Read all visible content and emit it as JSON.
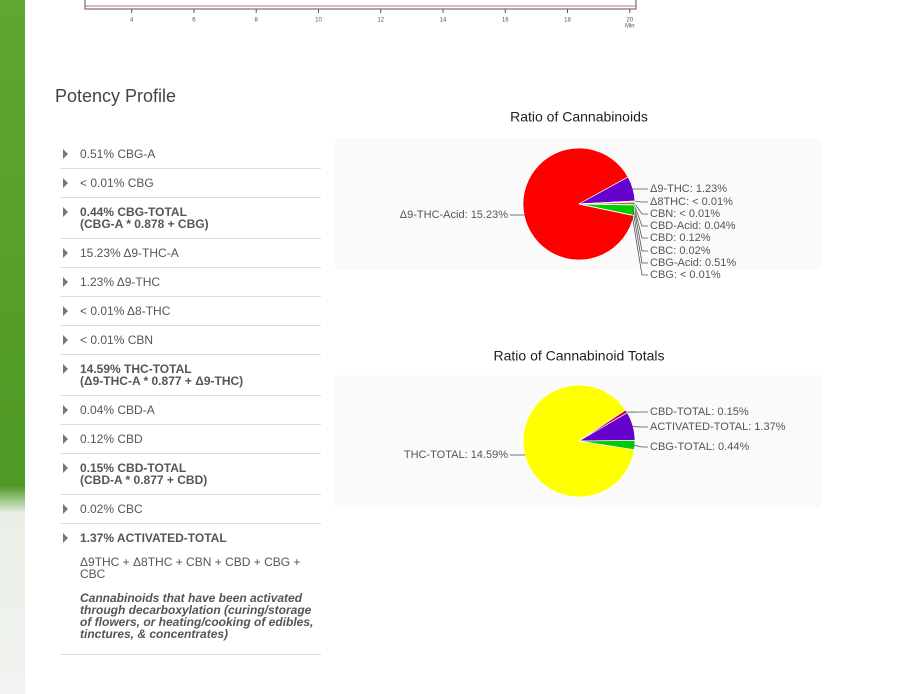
{
  "chromatogram": {
    "xlim": [
      2.5,
      20.2
    ],
    "xticks": [
      4,
      6,
      8,
      10,
      12,
      14,
      16,
      18,
      20
    ],
    "x_unit": "Min"
  },
  "section_title": "Potency Profile",
  "potency_list": {
    "items": [
      {
        "lines": [
          "0.51% CBG-A"
        ],
        "bold": false
      },
      {
        "lines": [
          "< 0.01% CBG"
        ],
        "bold": false
      },
      {
        "lines": [
          "0.44% CBG-TOTAL",
          "(CBG-A * 0.878 + CBG)"
        ],
        "bold": true
      },
      {
        "lines": [
          "15.23% Δ9-THC-A"
        ],
        "bold": false
      },
      {
        "lines": [
          "1.23% Δ9-THC"
        ],
        "bold": false
      },
      {
        "lines": [
          "< 0.01% Δ8-THC"
        ],
        "bold": false
      },
      {
        "lines": [
          "< 0.01% CBN"
        ],
        "bold": false
      },
      {
        "lines": [
          "14.59% THC-TOTAL",
          "(Δ9-THC-A * 0.877 + Δ9-THC)"
        ],
        "bold": true
      },
      {
        "lines": [
          "0.04% CBD-A"
        ],
        "bold": false
      },
      {
        "lines": [
          "0.12% CBD"
        ],
        "bold": false
      },
      {
        "lines": [
          "0.15% CBD-TOTAL",
          "(CBD-A * 0.877 + CBD)"
        ],
        "bold": true
      },
      {
        "lines": [
          "0.02% CBC"
        ],
        "bold": false
      },
      {
        "lines": [
          "1.37% ACTIVATED-TOTAL"
        ],
        "bold": true,
        "formula": "Δ9THC + Δ8THC + CBN + CBD + CBG + CBC",
        "note": "Cannabinoids that have been activated through decarboxylation (curing/storage of flowers, or heating/cooking of edibles, tinctures, & concentrates)"
      }
    ]
  },
  "chart_data": [
    {
      "type": "pie",
      "title": "Ratio of Cannabinoids",
      "values": [
        15.23,
        1.23,
        0.01,
        0.01,
        0.04,
        0.12,
        0.02,
        0.51,
        0.01
      ],
      "value_labels": [
        "Δ9-THC-Acid: 15.23%",
        "Δ9-THC: 1.23%",
        "Δ8THC: < 0.01%",
        "CBN: < 0.01%",
        "CBD-Acid: 0.04%",
        "CBD: 0.12%",
        "CBC: 0.02%",
        "CBG-Acid: 0.51%",
        "CBG: < 0.01%"
      ],
      "colors": [
        "#ff0000",
        "#6600cc",
        "#cccccc",
        "#999999",
        "#3399ff",
        "#cc6600",
        "#dddddd",
        "#00cc00",
        "#888888"
      ]
    },
    {
      "type": "pie",
      "title": "Ratio of Cannabinoid Totals",
      "values": [
        14.59,
        0.15,
        1.37,
        0.44
      ],
      "value_labels": [
        "THC-TOTAL: 14.59%",
        "CBD-TOTAL: 0.15%",
        "ACTIVATED-TOTAL: 1.37%",
        "CBG-TOTAL: 0.44%"
      ],
      "colors": [
        "#ffff00",
        "#cc0033",
        "#6600cc",
        "#00cc00"
      ]
    }
  ]
}
